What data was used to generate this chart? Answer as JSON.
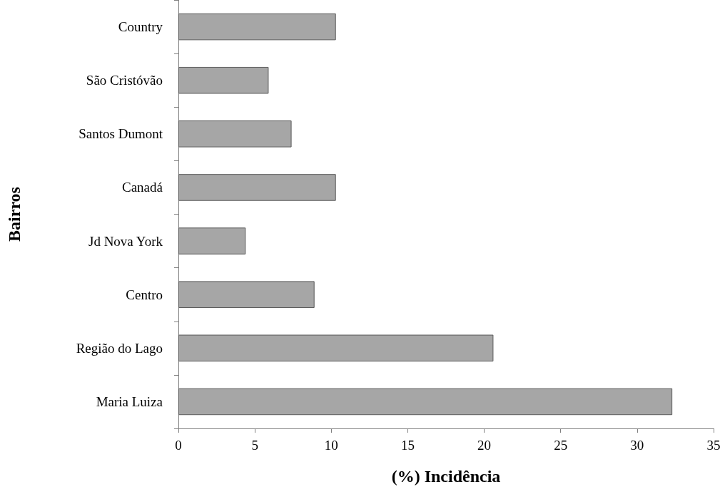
{
  "chart_data": {
    "type": "bar",
    "orientation": "horizontal",
    "xlabel": "(%) Incidência",
    "ylabel": "Bairros",
    "categories": [
      "Country",
      "São Cristóvão",
      "Santos Dumont",
      "Canadá",
      "Jd Nova York",
      "Centro",
      "Região do Lago",
      "Maria Luiza"
    ],
    "values": [
      10.3,
      5.9,
      7.4,
      10.3,
      4.4,
      8.9,
      20.6,
      32.3
    ],
    "color": "#a6a6a6",
    "xlim": [
      0,
      35
    ],
    "xticks": [
      0,
      5,
      10,
      15,
      20,
      25,
      30,
      35
    ],
    "grid": false
  }
}
